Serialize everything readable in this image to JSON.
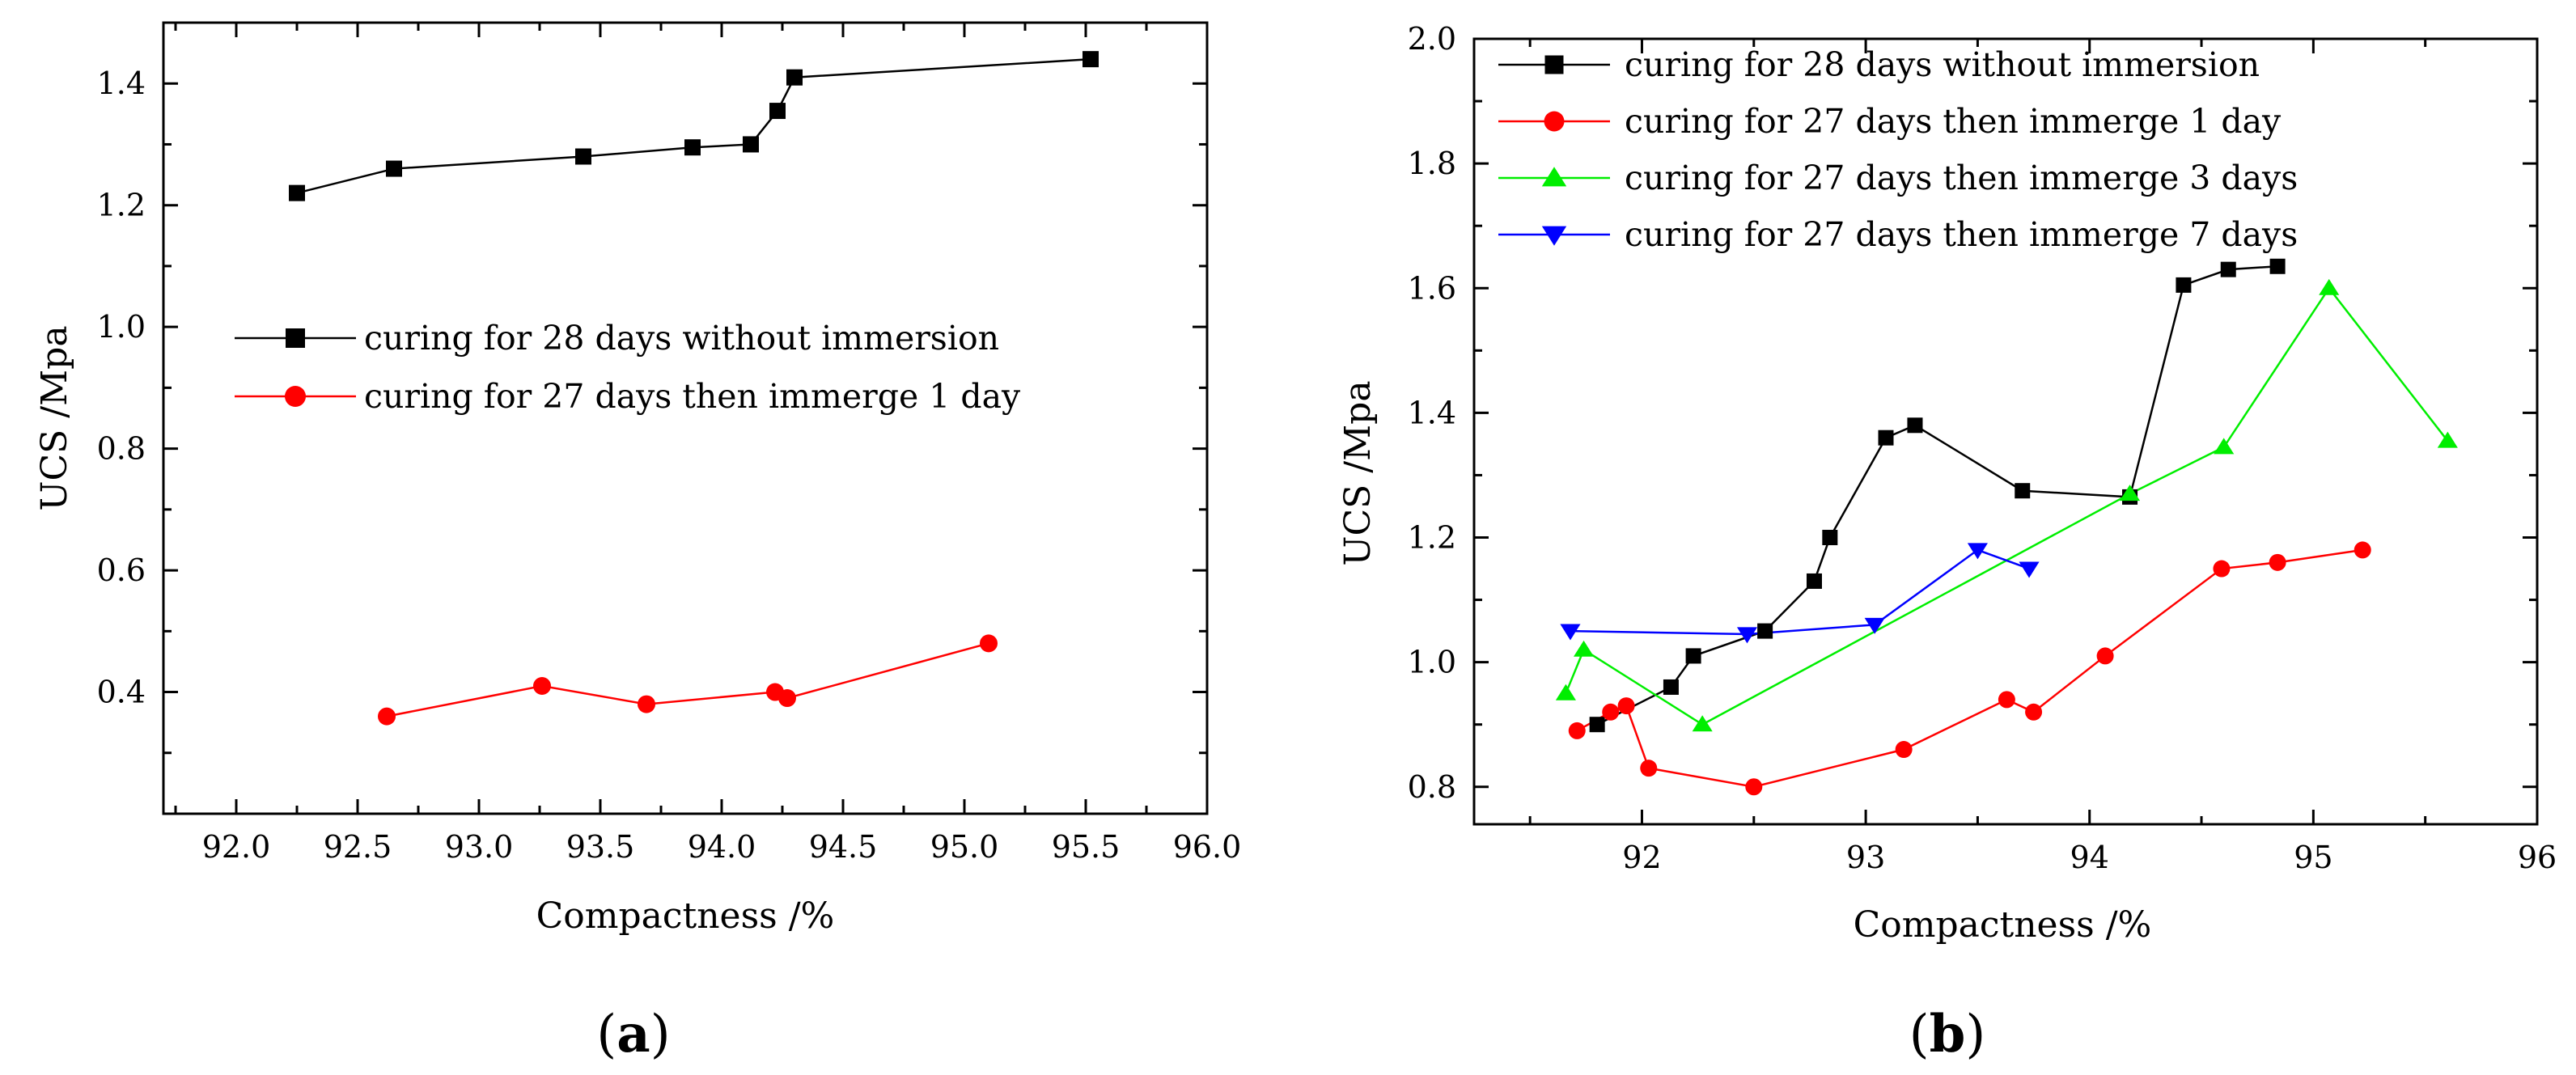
{
  "chart_data": [
    {
      "type": "line",
      "panel": "a",
      "panel_label": "a",
      "xlabel": "Compactness /%",
      "ylabel": "UCS /Mpa",
      "xlim": [
        91.7,
        96.0
      ],
      "ylim": [
        0.2,
        1.5
      ],
      "xticks": [
        92.0,
        92.5,
        93.0,
        93.5,
        94.0,
        94.5,
        95.0,
        95.5,
        96.0
      ],
      "xtick_labels": [
        "92.0",
        "92.5",
        "93.0",
        "93.5",
        "94.0",
        "94.5",
        "95.0",
        "95.5",
        "96.0"
      ],
      "yticks": [
        0.4,
        0.6,
        0.8,
        1.0,
        1.2,
        1.4
      ],
      "ytick_labels": [
        "0.4",
        "0.6",
        "0.8",
        "1.0",
        "1.2",
        "1.4"
      ],
      "legend_position": "center-left",
      "series": [
        {
          "name": "curing for 28 days without immersion",
          "color": "#000000",
          "marker": "square",
          "x": [
            92.25,
            92.65,
            93.43,
            93.88,
            94.12,
            94.23,
            94.3,
            95.52
          ],
          "y": [
            1.22,
            1.26,
            1.28,
            1.295,
            1.3,
            1.355,
            1.41,
            1.44
          ]
        },
        {
          "name": "curing for 27 days then immerge 1 day",
          "color": "#ff0000",
          "marker": "circle",
          "x": [
            92.62,
            93.26,
            93.69,
            94.22,
            94.27,
            95.1
          ],
          "y": [
            0.36,
            0.41,
            0.38,
            0.4,
            0.39,
            0.48
          ]
        }
      ]
    },
    {
      "type": "line",
      "panel": "b",
      "panel_label": "b",
      "xlabel": "Compactness /%",
      "ylabel": "UCS /Mpa",
      "xlim": [
        91.25,
        96.0
      ],
      "ylim": [
        0.74,
        2.0
      ],
      "xticks": [
        92,
        93,
        94,
        95,
        96
      ],
      "xtick_labels": [
        "92",
        "93",
        "94",
        "95",
        "96"
      ],
      "yticks": [
        0.8,
        1.0,
        1.2,
        1.4,
        1.6,
        1.8,
        2.0
      ],
      "ytick_labels": [
        "0.8",
        "1.0",
        "1.2",
        "1.4",
        "1.6",
        "1.8",
        "2.0"
      ],
      "legend_position": "top-left",
      "series": [
        {
          "name": "curing for 28 days without immersion",
          "color": "#000000",
          "marker": "square",
          "x": [
            91.8,
            92.13,
            92.23,
            92.55,
            92.77,
            92.84,
            93.09,
            93.22,
            93.7,
            94.18,
            94.42,
            94.62,
            94.84
          ],
          "y": [
            0.9,
            0.96,
            1.01,
            1.05,
            1.13,
            1.2,
            1.36,
            1.38,
            1.275,
            1.265,
            1.605,
            1.63,
            1.635
          ]
        },
        {
          "name": "curing for 27 days then immerge 1 day",
          "color": "#ff0000",
          "marker": "circle",
          "x": [
            91.71,
            91.86,
            91.93,
            92.03,
            92.5,
            93.17,
            93.63,
            93.75,
            94.07,
            94.59,
            94.84,
            95.22
          ],
          "y": [
            0.89,
            0.92,
            0.93,
            0.83,
            0.8,
            0.86,
            0.94,
            0.92,
            1.01,
            1.15,
            1.16,
            1.18
          ]
        },
        {
          "name": "curing for 27 days then immerge 3 days",
          "color": "#00ee00",
          "marker": "triangle-up",
          "x": [
            91.66,
            91.74,
            92.27,
            94.18,
            94.6,
            95.07,
            95.6
          ],
          "y": [
            0.95,
            1.02,
            0.9,
            1.27,
            1.345,
            1.6,
            1.355
          ]
        },
        {
          "name": "curing for 27 days then immerge 7 days",
          "color": "#0000ff",
          "marker": "triangle-down",
          "x": [
            91.68,
            92.47,
            93.04,
            93.5,
            93.73
          ],
          "y": [
            1.05,
            1.045,
            1.06,
            1.18,
            1.15
          ]
        }
      ]
    }
  ]
}
